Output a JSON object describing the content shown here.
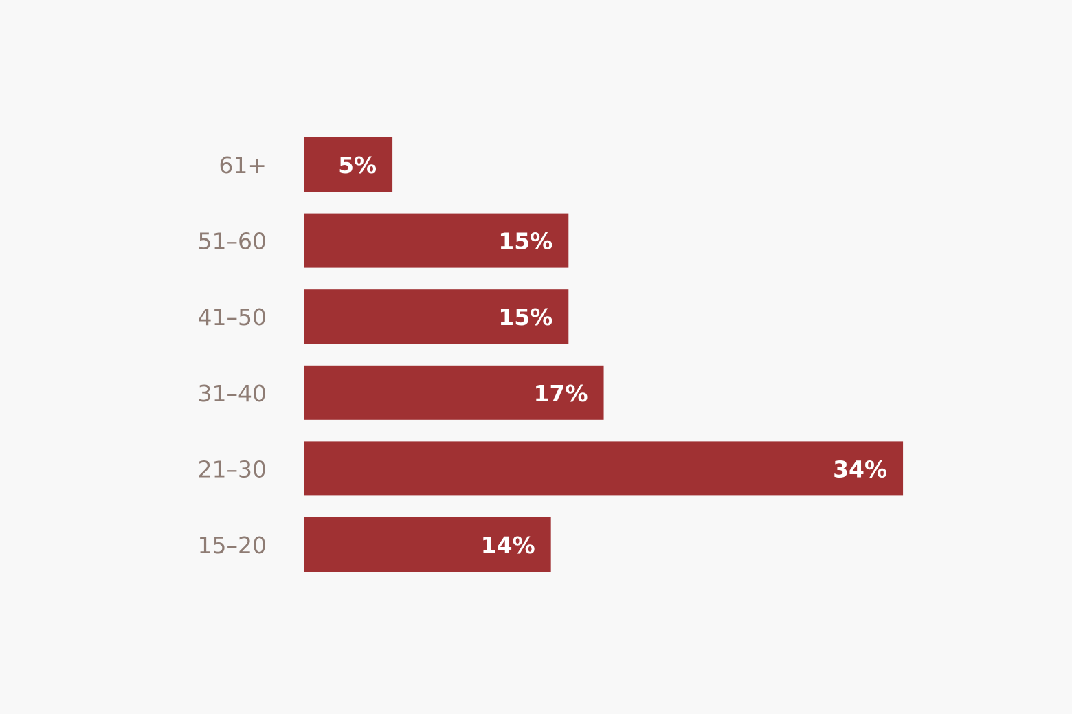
{
  "chart_data": {
    "type": "bar",
    "orientation": "horizontal",
    "categories": [
      "61+",
      "51–60",
      "41–50",
      "31–40",
      "21–30",
      "15–20"
    ],
    "values": [
      5,
      15,
      15,
      17,
      34,
      14
    ],
    "value_labels": [
      "5%",
      "15%",
      "15%",
      "17%",
      "34%",
      "14%"
    ],
    "color": "#a03133"
  }
}
